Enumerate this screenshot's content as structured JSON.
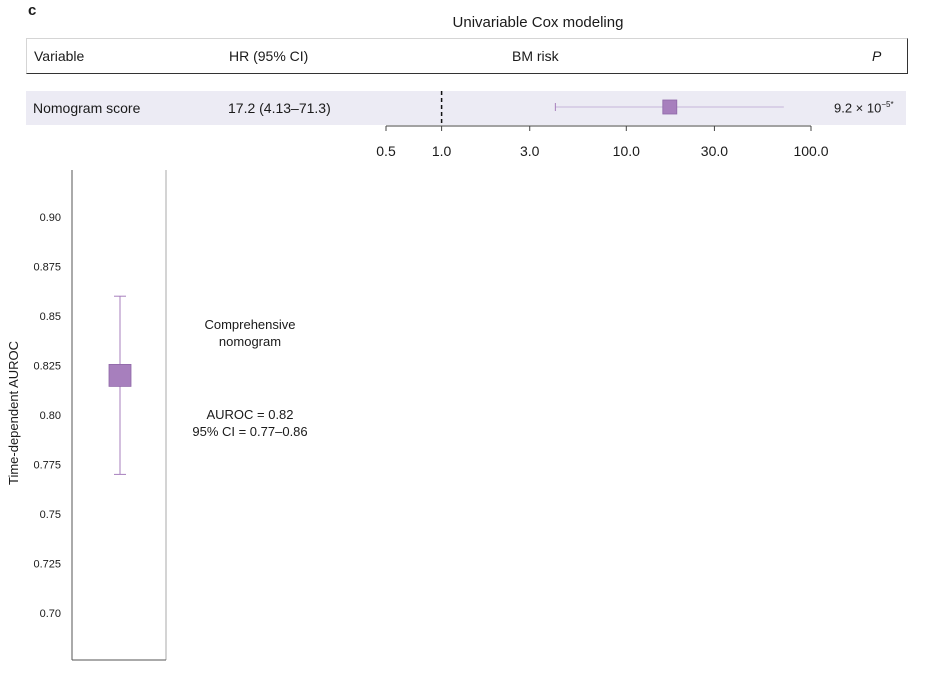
{
  "panel_letter": "c",
  "forest": {
    "title": "Univariable Cox modeling",
    "columns": {
      "variable": "Variable",
      "hr": "HR (95% CI)",
      "plot": "BM risk",
      "p": "P"
    },
    "row": {
      "variable": "Nomogram score",
      "hr_text": "17.2 (4.13–71.3)",
      "p_text": "9.2 × 10",
      "p_exp": "−5*"
    }
  },
  "chart_data": [
    {
      "type": "forest",
      "title": "Univariable Cox modeling",
      "xlabel": "BM risk",
      "x_scale": "log",
      "xlim": [
        0.5,
        100.0
      ],
      "ticks": [
        "0.5",
        "1.0",
        "3.0",
        "10.0",
        "30.0",
        "100.0"
      ],
      "reference_line": 1.0,
      "rows": [
        {
          "label": "Nomogram score",
          "hr": 17.2,
          "ci_low": 4.13,
          "ci_high": 71.3,
          "p": "9.2 × 10−5*"
        }
      ],
      "marker_color": "#a77fbd"
    },
    {
      "type": "errorbar",
      "ylabel": "Time-dependent AUROC",
      "ylim": [
        0.68,
        0.92
      ],
      "yticks": [
        "0.90",
        "0.875",
        "0.85",
        "0.825",
        "0.80",
        "0.775",
        "0.75",
        "0.725",
        "0.70"
      ],
      "points": [
        {
          "label": "Comprehensive nomogram",
          "value": 0.82,
          "ci_low": 0.77,
          "ci_high": 0.86
        }
      ],
      "marker_color": "#a77fbd"
    }
  ],
  "annotation": {
    "model_name": "Comprehensive\nnomogram",
    "auroc_text": "AUROC = 0.82",
    "ci_text": "95% CI = 0.77–0.86"
  }
}
